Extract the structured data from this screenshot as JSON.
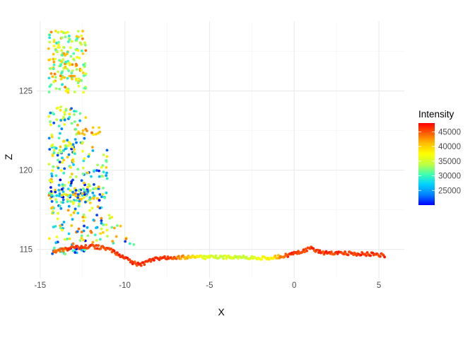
{
  "chart_data": {
    "type": "scatter",
    "title": "",
    "xlabel": "X",
    "ylabel": "Z",
    "xlim": [
      -15.2,
      6.5
    ],
    "ylim": [
      113.2,
      129.4
    ],
    "x_ticks": [
      -15,
      -10,
      -5,
      0,
      5
    ],
    "x_tick_labels": [
      "-15",
      "-10",
      "-5",
      "0",
      "5"
    ],
    "y_ticks": [
      115,
      120,
      125
    ],
    "y_tick_labels": [
      "115",
      "120",
      "125"
    ],
    "grid": true,
    "legend": {
      "title": "Intensity",
      "placement": "right",
      "breaks": [
        25000,
        30000,
        35000,
        40000,
        45000
      ],
      "break_labels": [
        "25000",
        "30000",
        "35000",
        "40000",
        "45000"
      ],
      "range": [
        20000,
        48000
      ],
      "colors": [
        "#0000ff",
        "#0080ff",
        "#00d0ff",
        "#40ffb0",
        "#c0ff40",
        "#ffff00",
        "#ffc000",
        "#ff6000",
        "#ff0000"
      ]
    },
    "regions": [
      {
        "x": [
          -14.5,
          -12.3
        ],
        "z": [
          124.9,
          128.8
        ],
        "i": [
          28000,
          44000
        ],
        "n": 170
      },
      {
        "x": [
          -14.5,
          -12.3
        ],
        "z": [
          121.0,
          124.0
        ],
        "i": [
          22000,
          42000
        ],
        "n": 80
      },
      {
        "x": [
          -13.0,
          -11.4
        ],
        "z": [
          122.2,
          122.8
        ],
        "i": [
          38000,
          44000
        ],
        "n": 14
      },
      {
        "x": [
          -14.5,
          -11.0
        ],
        "z": [
          118.0,
          121.5
        ],
        "i": [
          20000,
          42000
        ],
        "n": 170
      },
      {
        "x": [
          -14.5,
          -9.2
        ],
        "z": [
          115.3,
          118.8
        ],
        "i": [
          20000,
          44000
        ],
        "n": 150
      },
      {
        "x": [
          -14.3,
          -12.5
        ],
        "z": [
          114.7,
          115.1
        ],
        "i": [
          20000,
          34000
        ],
        "n": 24
      }
    ],
    "ridge": [
      {
        "x": -14.2,
        "z": 114.9,
        "i": 44000
      },
      {
        "x": -13.0,
        "z": 115.1,
        "i": 46000
      },
      {
        "x": -12.0,
        "z": 115.2,
        "i": 46000
      },
      {
        "x": -11.0,
        "z": 115.05,
        "i": 46000
      },
      {
        "x": -10.2,
        "z": 114.6,
        "i": 46000
      },
      {
        "x": -9.6,
        "z": 114.2,
        "i": 46000
      },
      {
        "x": -9.1,
        "z": 114.0,
        "i": 46000
      },
      {
        "x": -8.4,
        "z": 114.35,
        "i": 46000
      },
      {
        "x": -7.4,
        "z": 114.5,
        "i": 46000
      },
      {
        "x": -6.5,
        "z": 114.5,
        "i": 42000
      },
      {
        "x": -5.0,
        "z": 114.5,
        "i": 35000
      },
      {
        "x": -3.0,
        "z": 114.5,
        "i": 35000
      },
      {
        "x": -1.3,
        "z": 114.45,
        "i": 38000
      },
      {
        "x": -0.5,
        "z": 114.6,
        "i": 46000
      },
      {
        "x": 0.3,
        "z": 114.85,
        "i": 46000
      },
      {
        "x": 1.0,
        "z": 115.05,
        "i": 46000
      },
      {
        "x": 1.7,
        "z": 114.8,
        "i": 46000
      },
      {
        "x": 3.0,
        "z": 114.75,
        "i": 46000
      },
      {
        "x": 4.5,
        "z": 114.7,
        "i": 46000
      },
      {
        "x": 5.4,
        "z": 114.6,
        "i": 46000
      }
    ]
  }
}
